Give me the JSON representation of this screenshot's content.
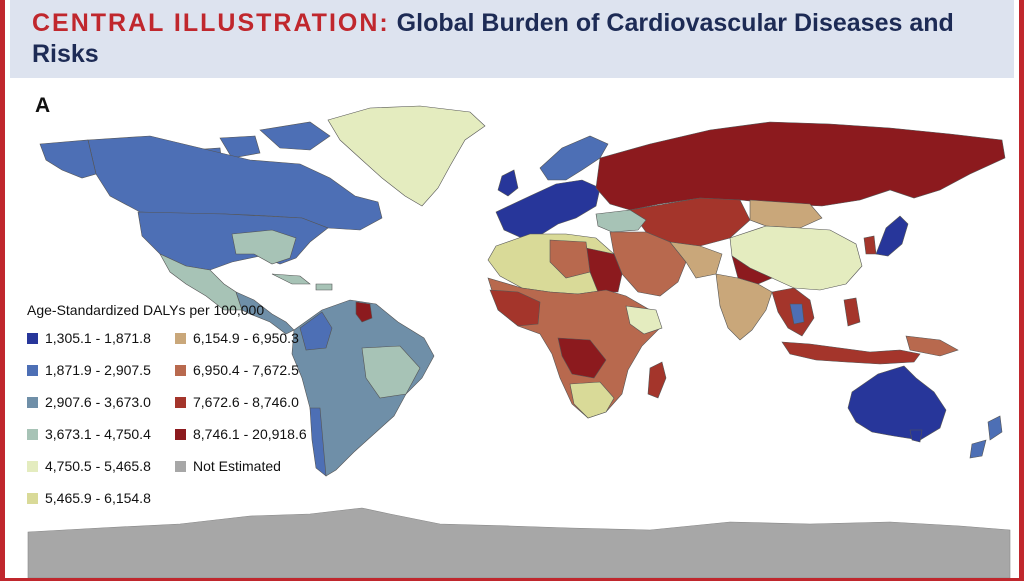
{
  "header": {
    "tag": "CENTRAL ILLUSTRATION:",
    "title": "Global Burden of Cardiovascular Diseases and Risks"
  },
  "panel_label": "A",
  "legend": {
    "title": "Age-Standardized DALYs per 100,000",
    "items": [
      {
        "label": "1,305.1 - 1,871.8",
        "color": "#27369a"
      },
      {
        "label": "1,871.9 - 2,907.5",
        "color": "#4d6fb5"
      },
      {
        "label": "2,907.6 - 3,673.0",
        "color": "#6f8fa8"
      },
      {
        "label": "3,673.1 - 4,750.4",
        "color": "#a7c3b6"
      },
      {
        "label": "4,750.5 - 5,465.8",
        "color": "#e4ecbf"
      },
      {
        "label": "5,465.9 - 6,154.8",
        "color": "#d9da98"
      },
      {
        "label": "6,154.9 - 6,950.3",
        "color": "#c9a77a"
      },
      {
        "label": "6,950.4 - 7,672.5",
        "color": "#b8694e"
      },
      {
        "label": "7,672.6 - 8,746.0",
        "color": "#a4352b"
      },
      {
        "label": "8,746.1 - 20,918.6",
        "color": "#8c1a1e"
      },
      {
        "label": "Not Estimated",
        "color": "#a7a7a7"
      }
    ]
  },
  "map_regions": [
    {
      "name": "Canada",
      "band": "1,871.9 - 2,907.5"
    },
    {
      "name": "United States",
      "band": "1,871.9 - 2,907.5"
    },
    {
      "name": "Greenland",
      "band": "4,750.5 - 5,465.8"
    },
    {
      "name": "Mexico",
      "band": "3,673.1 - 4,750.4"
    },
    {
      "name": "South America",
      "band": "2,907.6 - 3,673.0"
    },
    {
      "name": "Western Europe",
      "band": "1,305.1 - 1,871.8"
    },
    {
      "name": "Russia",
      "band": "8,746.1 - 20,918.6"
    },
    {
      "name": "Central Asia",
      "band": "7,672.6 - 8,746.0"
    },
    {
      "name": "China",
      "band": "4,750.5 - 5,465.8"
    },
    {
      "name": "India",
      "band": "6,154.9 - 6,950.3"
    },
    {
      "name": "Middle East",
      "band": "6,950.4 - 7,672.5"
    },
    {
      "name": "North Africa",
      "band": "5,465.9 - 6,154.8"
    },
    {
      "name": "Sub-Saharan Africa",
      "band": "6,950.4 - 7,672.5"
    },
    {
      "name": "Madagascar",
      "band": "7,672.6 - 8,746.0"
    },
    {
      "name": "Southeast Asia",
      "band": "7,672.6 - 8,746.0"
    },
    {
      "name": "Japan",
      "band": "1,305.1 - 1,871.8"
    },
    {
      "name": "Australia",
      "band": "1,305.1 - 1,871.8"
    },
    {
      "name": "New Zealand",
      "band": "1,871.9 - 2,907.5"
    },
    {
      "name": "Antarctica",
      "band": "Not Estimated"
    }
  ]
}
